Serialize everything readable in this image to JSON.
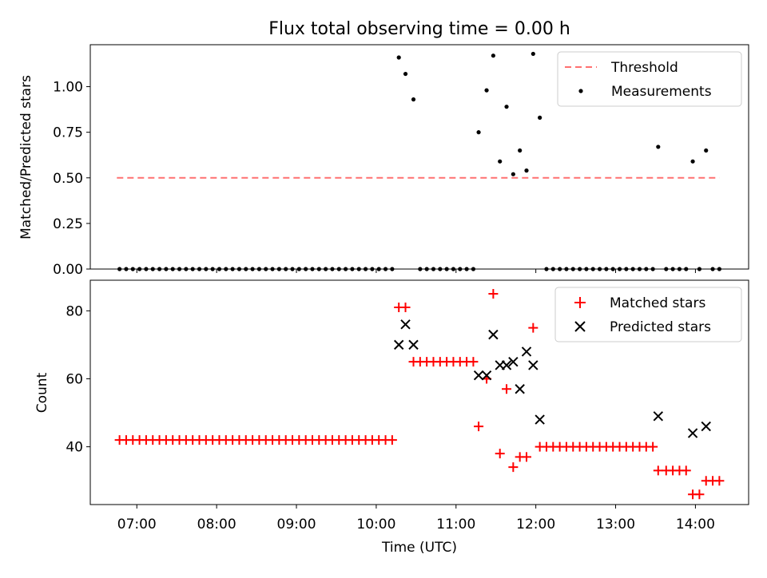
{
  "figure": {
    "title": "Flux total observing time = 0.00 h"
  },
  "colors": {
    "threshold": "#ff7070",
    "measurement": "#000000",
    "matched": "#ff0000",
    "predicted": "#000000"
  },
  "chart_data": [
    {
      "type": "scatter",
      "title": "Flux total observing time = 0.00 h",
      "xlabel": "",
      "ylabel": "Matched/Predicted stars",
      "xlim": [
        "06:25",
        "14:40"
      ],
      "ylim": [
        0.0,
        1.23
      ],
      "yticks": [
        0.0,
        0.25,
        0.5,
        0.75,
        1.0
      ],
      "ytick_labels": [
        "0.00",
        "0.25",
        "0.50",
        "0.75",
        "1.00"
      ],
      "xticks": [
        "07:00",
        "08:00",
        "09:00",
        "10:00",
        "11:00",
        "12:00",
        "13:00",
        "14:00"
      ],
      "xtick_labels_shown": false,
      "grid": false,
      "legend_position": "upper right",
      "legend": [
        "Threshold",
        "Measurements"
      ],
      "threshold": {
        "name": "Threshold",
        "x": [
          "06:45",
          "14:18"
        ],
        "y": 0.5,
        "style": "dashed"
      },
      "series": [
        {
          "name": "Measurements",
          "marker": "dot",
          "points": [
            [
              "06:47",
              0
            ],
            [
              "06:52",
              0
            ],
            [
              "06:57",
              0
            ],
            [
              "07:02",
              0
            ],
            [
              "07:07",
              0
            ],
            [
              "07:12",
              0
            ],
            [
              "07:17",
              0
            ],
            [
              "07:22",
              0
            ],
            [
              "07:27",
              0
            ],
            [
              "07:32",
              0
            ],
            [
              "07:37",
              0
            ],
            [
              "07:42",
              0
            ],
            [
              "07:47",
              0
            ],
            [
              "07:52",
              0
            ],
            [
              "07:57",
              0
            ],
            [
              "08:02",
              0
            ],
            [
              "08:07",
              0
            ],
            [
              "08:12",
              0
            ],
            [
              "08:17",
              0
            ],
            [
              "08:22",
              0
            ],
            [
              "08:27",
              0
            ],
            [
              "08:32",
              0
            ],
            [
              "08:37",
              0
            ],
            [
              "08:42",
              0
            ],
            [
              "08:47",
              0
            ],
            [
              "08:52",
              0
            ],
            [
              "08:57",
              0
            ],
            [
              "09:02",
              0
            ],
            [
              "09:07",
              0
            ],
            [
              "09:12",
              0
            ],
            [
              "09:17",
              0
            ],
            [
              "09:22",
              0
            ],
            [
              "09:27",
              0
            ],
            [
              "09:32",
              0
            ],
            [
              "09:37",
              0
            ],
            [
              "09:42",
              0
            ],
            [
              "09:47",
              0
            ],
            [
              "09:52",
              0
            ],
            [
              "09:57",
              0
            ],
            [
              "10:02",
              0
            ],
            [
              "10:07",
              0
            ],
            [
              "10:12",
              0
            ],
            [
              "10:17",
              1.16
            ],
            [
              "10:22",
              1.07
            ],
            [
              "10:28",
              0.93
            ],
            [
              "10:33",
              0
            ],
            [
              "10:38",
              0
            ],
            [
              "10:43",
              0
            ],
            [
              "10:48",
              0
            ],
            [
              "10:53",
              0
            ],
            [
              "10:58",
              0
            ],
            [
              "11:03",
              0
            ],
            [
              "11:08",
              0
            ],
            [
              "11:13",
              0
            ],
            [
              "11:17",
              0.75
            ],
            [
              "11:23",
              0.98
            ],
            [
              "11:28",
              1.17
            ],
            [
              "11:33",
              0.59
            ],
            [
              "11:38",
              0.89
            ],
            [
              "11:43",
              0.52
            ],
            [
              "11:48",
              0.65
            ],
            [
              "11:53",
              0.54
            ],
            [
              "11:58",
              1.18
            ],
            [
              "12:03",
              0.83
            ],
            [
              "12:08",
              0
            ],
            [
              "12:13",
              0
            ],
            [
              "12:18",
              0
            ],
            [
              "12:23",
              0
            ],
            [
              "12:28",
              0
            ],
            [
              "12:33",
              0
            ],
            [
              "12:38",
              0
            ],
            [
              "12:43",
              0
            ],
            [
              "12:48",
              0
            ],
            [
              "12:53",
              0
            ],
            [
              "12:58",
              0
            ],
            [
              "13:03",
              0
            ],
            [
              "13:08",
              0
            ],
            [
              "13:13",
              0
            ],
            [
              "13:18",
              0
            ],
            [
              "13:23",
              0
            ],
            [
              "13:28",
              0
            ],
            [
              "13:32",
              0.67
            ],
            [
              "13:38",
              0
            ],
            [
              "13:43",
              0
            ],
            [
              "13:48",
              0
            ],
            [
              "13:53",
              0
            ],
            [
              "13:58",
              0.59
            ],
            [
              "14:03",
              0
            ],
            [
              "14:08",
              0.65
            ],
            [
              "14:13",
              0
            ],
            [
              "14:18",
              0
            ]
          ]
        }
      ]
    },
    {
      "type": "scatter",
      "title": "",
      "xlabel": "Time (UTC)",
      "ylabel": "Count",
      "xlim": [
        "06:25",
        "14:40"
      ],
      "ylim": [
        23,
        89
      ],
      "yticks": [
        40,
        60,
        80
      ],
      "xticks": [
        "07:00",
        "08:00",
        "09:00",
        "10:00",
        "11:00",
        "12:00",
        "13:00",
        "14:00"
      ],
      "grid": false,
      "legend_position": "upper right",
      "legend": [
        "Matched stars",
        "Predicted stars"
      ],
      "series": [
        {
          "name": "Matched stars",
          "marker": "plus",
          "points": [
            [
              "06:47",
              42
            ],
            [
              "06:52",
              42
            ],
            [
              "06:57",
              42
            ],
            [
              "07:02",
              42
            ],
            [
              "07:07",
              42
            ],
            [
              "07:12",
              42
            ],
            [
              "07:17",
              42
            ],
            [
              "07:22",
              42
            ],
            [
              "07:27",
              42
            ],
            [
              "07:32",
              42
            ],
            [
              "07:37",
              42
            ],
            [
              "07:42",
              42
            ],
            [
              "07:47",
              42
            ],
            [
              "07:52",
              42
            ],
            [
              "07:57",
              42
            ],
            [
              "08:02",
              42
            ],
            [
              "08:07",
              42
            ],
            [
              "08:12",
              42
            ],
            [
              "08:17",
              42
            ],
            [
              "08:22",
              42
            ],
            [
              "08:27",
              42
            ],
            [
              "08:32",
              42
            ],
            [
              "08:37",
              42
            ],
            [
              "08:42",
              42
            ],
            [
              "08:47",
              42
            ],
            [
              "08:52",
              42
            ],
            [
              "08:57",
              42
            ],
            [
              "09:02",
              42
            ],
            [
              "09:07",
              42
            ],
            [
              "09:12",
              42
            ],
            [
              "09:17",
              42
            ],
            [
              "09:22",
              42
            ],
            [
              "09:27",
              42
            ],
            [
              "09:32",
              42
            ],
            [
              "09:37",
              42
            ],
            [
              "09:42",
              42
            ],
            [
              "09:47",
              42
            ],
            [
              "09:52",
              42
            ],
            [
              "09:57",
              42
            ],
            [
              "10:02",
              42
            ],
            [
              "10:07",
              42
            ],
            [
              "10:12",
              42
            ],
            [
              "10:17",
              81
            ],
            [
              "10:22",
              81
            ],
            [
              "10:28",
              65
            ],
            [
              "10:33",
              65
            ],
            [
              "10:38",
              65
            ],
            [
              "10:43",
              65
            ],
            [
              "10:48",
              65
            ],
            [
              "10:53",
              65
            ],
            [
              "10:58",
              65
            ],
            [
              "11:03",
              65
            ],
            [
              "11:08",
              65
            ],
            [
              "11:13",
              65
            ],
            [
              "11:17",
              46
            ],
            [
              "11:23",
              60
            ],
            [
              "11:28",
              85
            ],
            [
              "11:33",
              38
            ],
            [
              "11:38",
              57
            ],
            [
              "11:43",
              34
            ],
            [
              "11:48",
              37
            ],
            [
              "11:53",
              37
            ],
            [
              "11:58",
              75
            ],
            [
              "12:03",
              40
            ],
            [
              "12:08",
              40
            ],
            [
              "12:13",
              40
            ],
            [
              "12:18",
              40
            ],
            [
              "12:23",
              40
            ],
            [
              "12:28",
              40
            ],
            [
              "12:33",
              40
            ],
            [
              "12:38",
              40
            ],
            [
              "12:43",
              40
            ],
            [
              "12:48",
              40
            ],
            [
              "12:53",
              40
            ],
            [
              "12:58",
              40
            ],
            [
              "13:03",
              40
            ],
            [
              "13:08",
              40
            ],
            [
              "13:13",
              40
            ],
            [
              "13:18",
              40
            ],
            [
              "13:23",
              40
            ],
            [
              "13:28",
              40
            ],
            [
              "13:32",
              33
            ],
            [
              "13:38",
              33
            ],
            [
              "13:43",
              33
            ],
            [
              "13:48",
              33
            ],
            [
              "13:53",
              33
            ],
            [
              "13:58",
              26
            ],
            [
              "14:03",
              26
            ],
            [
              "14:08",
              30
            ],
            [
              "14:13",
              30
            ],
            [
              "14:18",
              30
            ]
          ]
        },
        {
          "name": "Predicted stars",
          "marker": "x",
          "points": [
            [
              "10:17",
              70
            ],
            [
              "10:22",
              76
            ],
            [
              "10:28",
              70
            ],
            [
              "11:17",
              61
            ],
            [
              "11:23",
              61
            ],
            [
              "11:28",
              73
            ],
            [
              "11:33",
              64
            ],
            [
              "11:38",
              64
            ],
            [
              "11:43",
              65
            ],
            [
              "11:48",
              57
            ],
            [
              "11:53",
              68
            ],
            [
              "11:58",
              64
            ],
            [
              "12:03",
              48
            ],
            [
              "13:32",
              49
            ],
            [
              "13:58",
              44
            ],
            [
              "14:08",
              46
            ]
          ]
        }
      ]
    }
  ]
}
